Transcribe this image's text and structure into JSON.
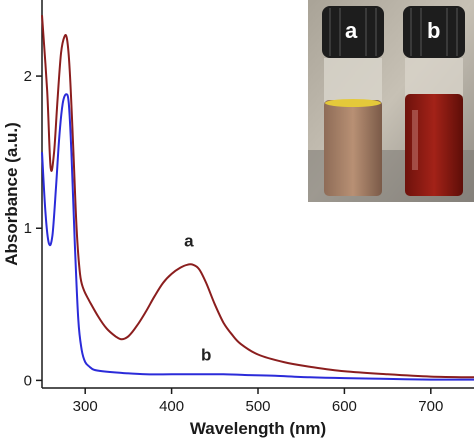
{
  "chart_data": {
    "type": "line",
    "title": "",
    "xlabel": "Wavelength (nm)",
    "ylabel": "Absorbance (a.u.)",
    "xlim": [
      250,
      750
    ],
    "ylim": [
      -0.05,
      2.5
    ],
    "xticks": [
      300,
      400,
      500,
      600,
      700
    ],
    "yticks": [
      0,
      1,
      2
    ],
    "grid": false,
    "legend": "none",
    "series": [
      {
        "name": "a",
        "color": "#8b1e1e",
        "x": [
          250,
          256,
          260,
          264,
          268,
          272,
          276,
          279,
          282,
          286,
          290,
          294,
          298,
          305,
          315,
          325,
          335,
          342,
          350,
          360,
          370,
          380,
          390,
          400,
          410,
          418,
          425,
          432,
          440,
          450,
          460,
          470,
          480,
          500,
          530,
          560,
          600,
          650,
          700,
          750
        ],
        "y": [
          2.4,
          1.9,
          1.4,
          1.5,
          1.85,
          2.15,
          2.26,
          2.24,
          2.05,
          1.55,
          1.0,
          0.7,
          0.6,
          0.52,
          0.42,
          0.34,
          0.29,
          0.27,
          0.29,
          0.36,
          0.45,
          0.55,
          0.64,
          0.7,
          0.74,
          0.76,
          0.76,
          0.73,
          0.64,
          0.5,
          0.38,
          0.3,
          0.24,
          0.17,
          0.12,
          0.09,
          0.06,
          0.04,
          0.025,
          0.02
        ]
      },
      {
        "name": "b",
        "color": "#2b2bd9",
        "x": [
          250,
          254,
          258,
          262,
          266,
          270,
          274,
          278,
          281,
          284,
          288,
          292,
          296,
          300,
          305,
          310,
          320,
          340,
          370,
          400,
          430,
          460,
          490,
          520,
          560,
          600,
          650,
          700,
          750
        ],
        "y": [
          1.5,
          1.1,
          0.9,
          0.95,
          1.25,
          1.6,
          1.82,
          1.88,
          1.82,
          1.5,
          0.9,
          0.4,
          0.2,
          0.12,
          0.09,
          0.07,
          0.06,
          0.05,
          0.04,
          0.04,
          0.04,
          0.04,
          0.035,
          0.03,
          0.02,
          0.015,
          0.01,
          0.005,
          0.005
        ]
      }
    ],
    "annotations": [
      {
        "text": "a",
        "x": 420,
        "y": 0.88
      },
      {
        "text": "b",
        "x": 440,
        "y": 0.13
      }
    ],
    "inset": {
      "vials": [
        {
          "label": "a",
          "liquid_color": "#b0866a"
        },
        {
          "label": "b",
          "liquid_color": "#8e1a12"
        }
      ]
    }
  }
}
